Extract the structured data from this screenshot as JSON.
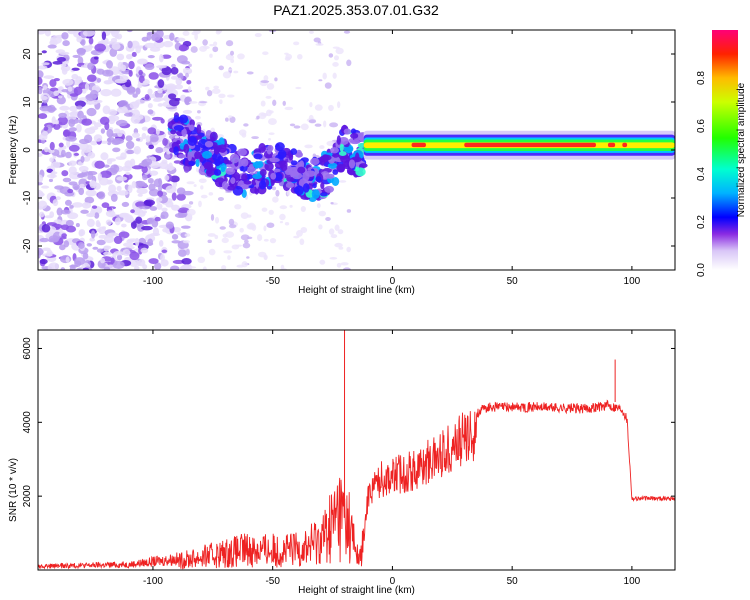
{
  "title": "PAZ1.2025.353.07.01.G32",
  "chart_data": [
    {
      "type": "heatmap",
      "xlabel": "Height of straight line (km)",
      "ylabel": "Frequency (Hz)",
      "xlim": [
        -148,
        118
      ],
      "ylim": [
        -25,
        25
      ],
      "xticks": [
        -100,
        -50,
        0,
        50,
        100
      ],
      "yticks": [
        -20,
        -10,
        0,
        10,
        20
      ],
      "colorbar": {
        "label": "Normalized spectral amplitude",
        "range": [
          0,
          1
        ],
        "ticks": [
          0.0,
          0.2,
          0.4,
          0.6,
          0.8
        ]
      },
      "ridge": [
        {
          "x": -90,
          "y": 3
        },
        {
          "x": -80,
          "y": 0
        },
        {
          "x": -70,
          "y": -3
        },
        {
          "x": -60,
          "y": -5
        },
        {
          "x": -50,
          "y": -3
        },
        {
          "x": -40,
          "y": -5
        },
        {
          "x": -30,
          "y": -6
        },
        {
          "x": -20,
          "y": 0
        },
        {
          "x": -10,
          "y": -1
        },
        {
          "x": 0,
          "y": 1
        },
        {
          "x": 10,
          "y": 1
        },
        {
          "x": 50,
          "y": 1
        },
        {
          "x": 100,
          "y": 1
        },
        {
          "x": 118,
          "y": 1
        }
      ]
    },
    {
      "type": "line",
      "xlabel": "Height of straight line (km)",
      "ylabel": "SNR (10 * v/v)",
      "xlim": [
        -148,
        118
      ],
      "ylim": [
        0,
        6500
      ],
      "xticks": [
        -100,
        -50,
        0,
        50,
        100
      ],
      "yticks": [
        2000,
        4000,
        6000
      ],
      "color": "#ee2222",
      "envelope": [
        {
          "x": -148,
          "y": 100
        },
        {
          "x": -110,
          "y": 150
        },
        {
          "x": -90,
          "y": 300
        },
        {
          "x": -75,
          "y": 500
        },
        {
          "x": -60,
          "y": 700
        },
        {
          "x": -45,
          "y": 650
        },
        {
          "x": -35,
          "y": 800
        },
        {
          "x": -28,
          "y": 1200
        },
        {
          "x": -22,
          "y": 2000
        },
        {
          "x": -18,
          "y": 1500
        },
        {
          "x": -14,
          "y": 300
        },
        {
          "x": -12,
          "y": 900
        },
        {
          "x": -10,
          "y": 2500
        },
        {
          "x": -5,
          "y": 2900
        },
        {
          "x": 0,
          "y": 3000
        },
        {
          "x": 10,
          "y": 3200
        },
        {
          "x": 20,
          "y": 3700
        },
        {
          "x": 30,
          "y": 4200
        },
        {
          "x": 40,
          "y": 4550
        },
        {
          "x": 60,
          "y": 4550
        },
        {
          "x": 80,
          "y": 4500
        },
        {
          "x": 90,
          "y": 4600
        },
        {
          "x": 96,
          "y": 4500
        },
        {
          "x": 98,
          "y": 4200
        },
        {
          "x": 100,
          "y": 2000
        },
        {
          "x": 118,
          "y": 2000
        }
      ],
      "spikes": [
        {
          "x": -20,
          "y": 6500
        },
        {
          "x": 93,
          "y": 5700
        }
      ]
    }
  ]
}
